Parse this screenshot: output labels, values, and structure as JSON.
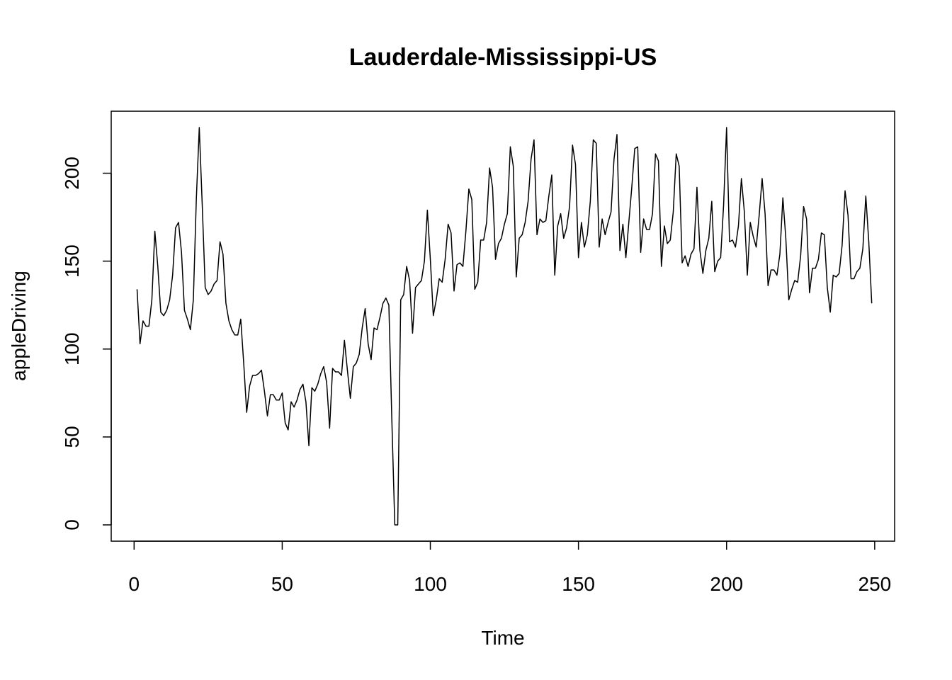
{
  "chart_data": {
    "type": "line",
    "title": "Lauderdale-Mississippi-US",
    "xlabel": "Time",
    "ylabel": "appleDriving",
    "xlim": [
      1,
      248
    ],
    "ylim": [
      0,
      226
    ],
    "xticks": [
      0,
      50,
      100,
      150,
      200,
      250
    ],
    "yticks": [
      0,
      50,
      100,
      150,
      200
    ],
    "grid": false,
    "legend": "none",
    "line_color": "#000000",
    "series": [
      {
        "values": [
          134,
          103,
          116,
          113,
          113,
          128,
          167,
          147,
          121,
          119,
          122,
          128,
          142,
          169,
          172,
          155,
          122,
          117,
          111,
          128,
          185,
          226,
          182,
          135,
          131,
          133,
          137,
          139,
          161,
          154,
          126,
          116,
          111,
          108,
          108,
          117,
          92,
          64,
          79,
          85,
          85,
          86,
          88,
          76,
          62,
          74,
          74,
          71,
          71,
          75,
          58,
          54,
          70,
          67,
          71,
          77,
          80,
          70,
          45,
          78,
          76,
          80,
          86,
          90,
          81,
          55,
          89,
          87,
          87,
          85,
          105,
          88,
          72,
          90,
          92,
          97,
          112,
          123,
          103,
          94,
          112,
          111,
          118,
          126,
          129,
          125,
          60,
          0,
          0,
          128,
          131,
          147,
          139,
          109,
          135,
          137,
          139,
          150,
          179,
          151,
          119,
          128,
          140,
          138,
          151,
          171,
          166,
          133,
          148,
          149,
          147,
          167,
          191,
          185,
          134,
          138,
          162,
          162,
          172,
          203,
          192,
          151,
          160,
          163,
          171,
          177,
          215,
          204,
          141,
          163,
          165,
          172,
          184,
          208,
          219,
          165,
          174,
          172,
          173,
          187,
          199,
          142,
          170,
          177,
          163,
          169,
          181,
          216,
          205,
          152,
          172,
          158,
          165,
          184,
          219,
          217,
          158,
          174,
          165,
          172,
          178,
          208,
          222,
          156,
          171,
          152,
          172,
          192,
          214,
          215,
          155,
          174,
          168,
          168,
          177,
          211,
          207,
          147,
          170,
          160,
          162,
          178,
          211,
          204,
          149,
          153,
          147,
          154,
          157,
          192,
          156,
          143,
          156,
          163,
          184,
          144,
          150,
          152,
          182,
          226,
          161,
          162,
          158,
          170,
          197,
          178,
          142,
          172,
          164,
          158,
          176,
          197,
          177,
          136,
          145,
          145,
          142,
          154,
          186,
          163,
          128,
          134,
          139,
          138,
          153,
          181,
          174,
          132,
          146,
          146,
          151,
          166,
          165,
          135,
          121,
          142,
          141,
          143,
          159,
          190,
          176,
          140,
          140,
          144,
          146,
          157,
          187,
          161,
          126
        ]
      }
    ]
  }
}
